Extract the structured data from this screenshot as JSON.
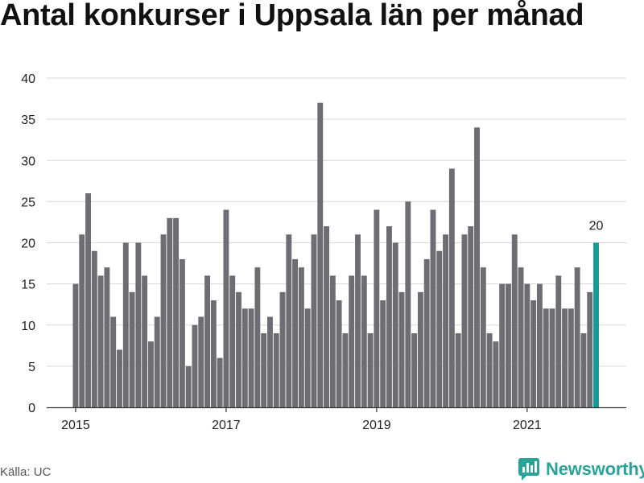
{
  "title": "Antal konkurser i Uppsala län per månad",
  "source": "Källa: UC",
  "brand": {
    "name": "Newsworthy",
    "color": "#2aa39a"
  },
  "colors": {
    "bar": "#6e6d72",
    "highlight": "#159c98",
    "grid": "#d9d9d9",
    "axis": "#333333"
  },
  "chart_data": {
    "type": "bar",
    "title": "Antal konkurser i Uppsala län per månad",
    "x_start": "2015-01",
    "x_end": "2021-12",
    "x_tick_labels": [
      "2015",
      "2017",
      "2019",
      "2021"
    ],
    "y_ticks": [
      "0",
      "5",
      "10",
      "15",
      "20",
      "25",
      "30",
      "35",
      "40"
    ],
    "ylim": [
      0,
      40
    ],
    "grid": true,
    "highlight_label": "20",
    "values": [
      15,
      21,
      26,
      19,
      16,
      17,
      11,
      7,
      20,
      14,
      20,
      16,
      8,
      11,
      21,
      23,
      23,
      18,
      5,
      10,
      11,
      16,
      13,
      6,
      24,
      16,
      14,
      12,
      12,
      17,
      9,
      11,
      9,
      14,
      21,
      18,
      17,
      12,
      21,
      37,
      22,
      16,
      13,
      9,
      16,
      21,
      16,
      9,
      24,
      13,
      22,
      20,
      14,
      25,
      9,
      14,
      18,
      24,
      19,
      21,
      29,
      9,
      21,
      22,
      34,
      17,
      9,
      8,
      15,
      15,
      21,
      17,
      15,
      13,
      15,
      12,
      12,
      16,
      12,
      12,
      17,
      9,
      14,
      20
    ]
  }
}
